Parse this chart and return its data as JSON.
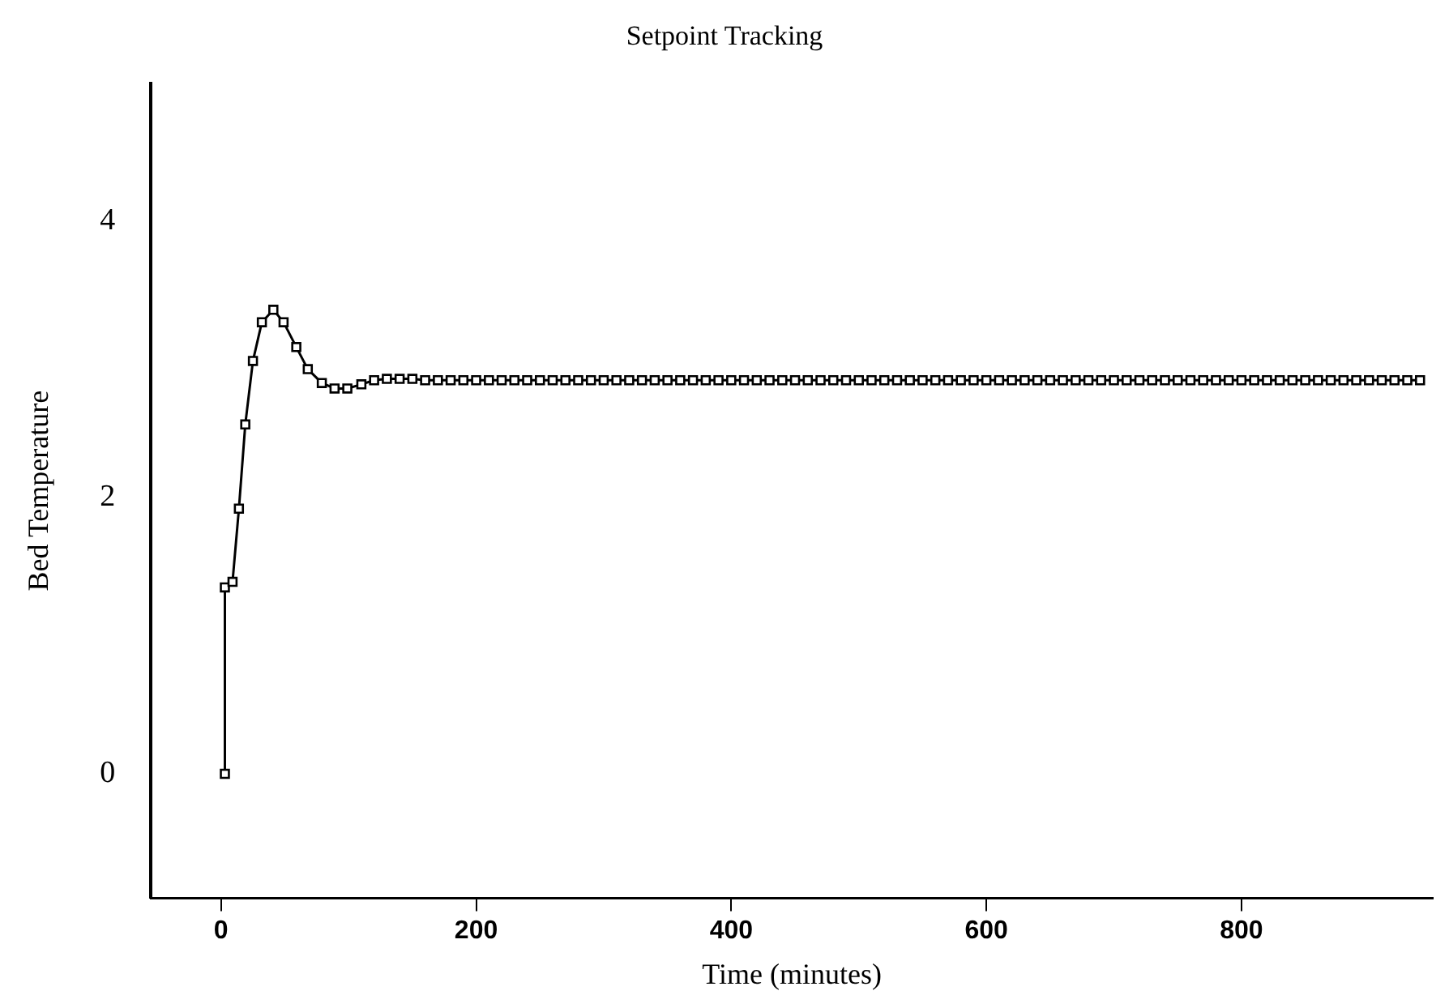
{
  "chart_data": {
    "type": "line",
    "title": "Setpoint Tracking",
    "xlabel": "Time (minutes)",
    "ylabel": "Bed Temperature",
    "xlim": [
      -55,
      950
    ],
    "xticks": [
      0,
      200,
      400,
      600,
      800
    ],
    "ylim": [
      -0.9,
      5
    ],
    "yticks": [
      0,
      2,
      4
    ],
    "grid": false,
    "legend": false,
    "marker": "square",
    "line_style": "solid",
    "series": [
      {
        "color": "#000000",
        "x": [
          3,
          3,
          9,
          14,
          19,
          25,
          32,
          41,
          49,
          59,
          68,
          79,
          89,
          99,
          110,
          120,
          130,
          140,
          150,
          160,
          170,
          180,
          190,
          200,
          210,
          220,
          230,
          240,
          250,
          260,
          270,
          280,
          290,
          300,
          310,
          320,
          330,
          340,
          350,
          360,
          370,
          380,
          390,
          400,
          410,
          420,
          430,
          440,
          450,
          460,
          470,
          480,
          490,
          500,
          510,
          520,
          530,
          540,
          550,
          560,
          570,
          580,
          590,
          600,
          610,
          620,
          630,
          640,
          650,
          660,
          670,
          680,
          690,
          700,
          710,
          720,
          730,
          740,
          750,
          760,
          770,
          780,
          790,
          800,
          810,
          820,
          830,
          840,
          850,
          860,
          870,
          880,
          890,
          900,
          910,
          920,
          930,
          940
        ],
        "values": [
          0,
          1.35,
          1.39,
          1.92,
          2.53,
          2.99,
          3.27,
          3.36,
          3.27,
          3.09,
          2.93,
          2.83,
          2.79,
          2.79,
          2.82,
          2.85,
          2.86,
          2.86,
          2.86,
          2.85,
          2.85,
          2.85,
          2.85,
          2.85,
          2.85,
          2.85,
          2.85,
          2.85,
          2.85,
          2.85,
          2.85,
          2.85,
          2.85,
          2.85,
          2.85,
          2.85,
          2.85,
          2.85,
          2.85,
          2.85,
          2.85,
          2.85,
          2.85,
          2.85,
          2.85,
          2.85,
          2.85,
          2.85,
          2.85,
          2.85,
          2.85,
          2.85,
          2.85,
          2.85,
          2.85,
          2.85,
          2.85,
          2.85,
          2.85,
          2.85,
          2.85,
          2.85,
          2.85,
          2.85,
          2.85,
          2.85,
          2.85,
          2.85,
          2.85,
          2.85,
          2.85,
          2.85,
          2.85,
          2.85,
          2.85,
          2.85,
          2.85,
          2.85,
          2.85,
          2.85,
          2.85,
          2.85,
          2.85,
          2.85,
          2.85,
          2.85,
          2.85,
          2.85,
          2.85,
          2.85,
          2.85,
          2.85,
          2.85,
          2.85,
          2.85,
          2.85,
          2.85,
          2.85
        ]
      }
    ]
  }
}
